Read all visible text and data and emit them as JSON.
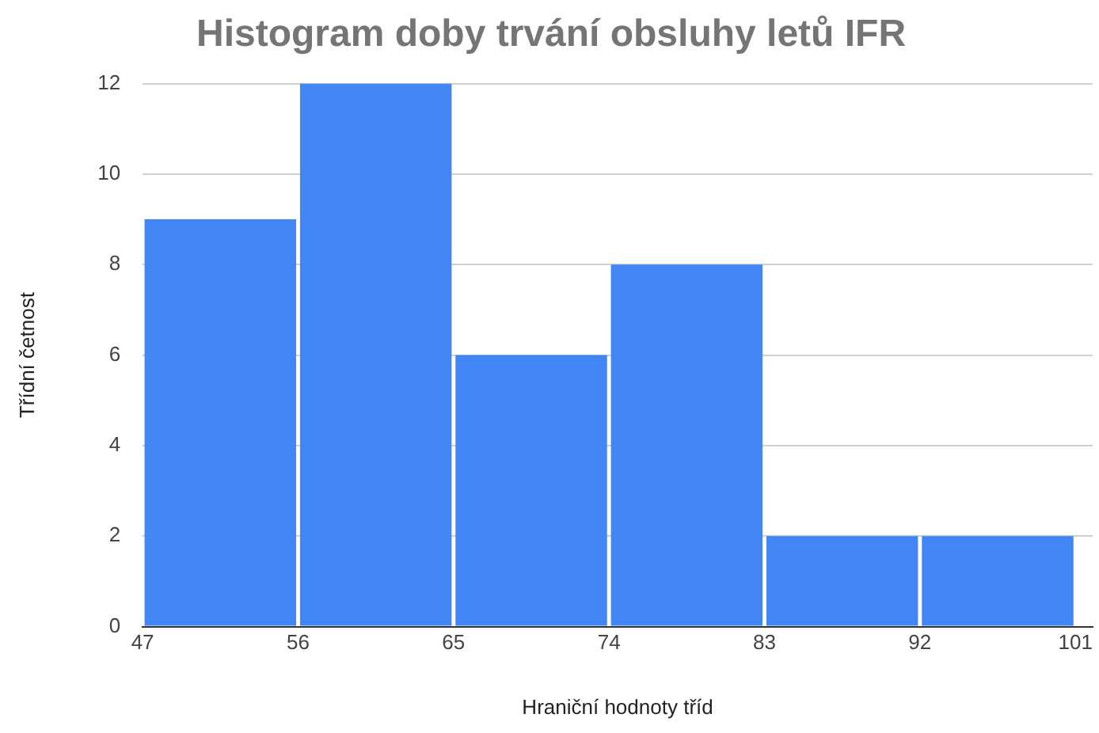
{
  "chart_data": {
    "type": "histogram",
    "title": "Histogram doby trvání obsluhy letů IFR",
    "xlabel": "Hraniční hodnoty tříd",
    "ylabel": "Třídní četnost",
    "bins": [
      47,
      56,
      65,
      74,
      83,
      92,
      101
    ],
    "values": [
      9,
      12,
      6,
      8,
      2,
      2
    ],
    "color": "#4285f4",
    "xlim": [
      47,
      102
    ],
    "xticks": [
      47,
      56,
      65,
      74,
      83,
      92,
      101
    ],
    "ylim": [
      0,
      12
    ],
    "yticks": [
      0,
      2,
      4,
      6,
      8,
      10,
      12
    ],
    "grid": "y",
    "legend": false
  }
}
